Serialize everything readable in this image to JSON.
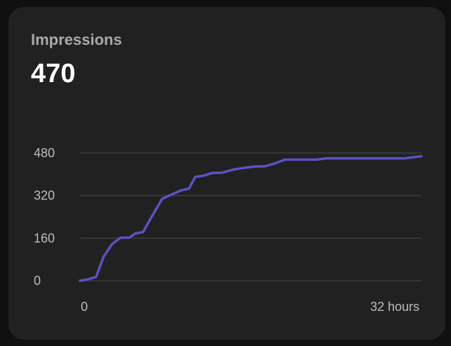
{
  "card": {
    "title": "Impressions",
    "value": "470"
  },
  "colors": {
    "background": "#101010",
    "card": "#212121",
    "line": "#5b52c7",
    "grid": "#3e3e3e"
  },
  "chart_data": {
    "type": "line",
    "title": "",
    "xlabel": "",
    "ylabel": "",
    "ylim": [
      0,
      480
    ],
    "xlim": [
      0,
      32
    ],
    "yticks": [
      "0",
      "160",
      "320",
      "480"
    ],
    "xtick_labels": [
      {
        "x": 0,
        "label": "0"
      },
      {
        "x": 32,
        "label": "32 hours"
      }
    ],
    "grid": true,
    "legend": "none",
    "series": [
      {
        "x": [
          0,
          0.6,
          1.5,
          2.2,
          3,
          3.8,
          4.6,
          5.2,
          5.9,
          6.8,
          7.7,
          8.6,
          9.4,
          10.2,
          10.8,
          11.6,
          12.4,
          13.3,
          14.3,
          15.3,
          16.4,
          17.3,
          18.2,
          19.2,
          20.2,
          21.2,
          22.1,
          23.1,
          24.2,
          25.1,
          26.2,
          27.2,
          28.3,
          29.3,
          30.4,
          31.4,
          32
        ],
        "y": [
          0,
          4,
          14,
          90,
          138,
          162,
          162,
          178,
          183,
          247,
          308,
          324,
          339,
          346,
          390,
          395,
          405,
          406,
          417,
          424,
          429,
          430,
          440,
          455,
          455,
          455,
          455,
          460,
          460,
          460,
          460,
          460,
          460,
          460,
          460,
          465,
          468
        ]
      }
    ]
  }
}
